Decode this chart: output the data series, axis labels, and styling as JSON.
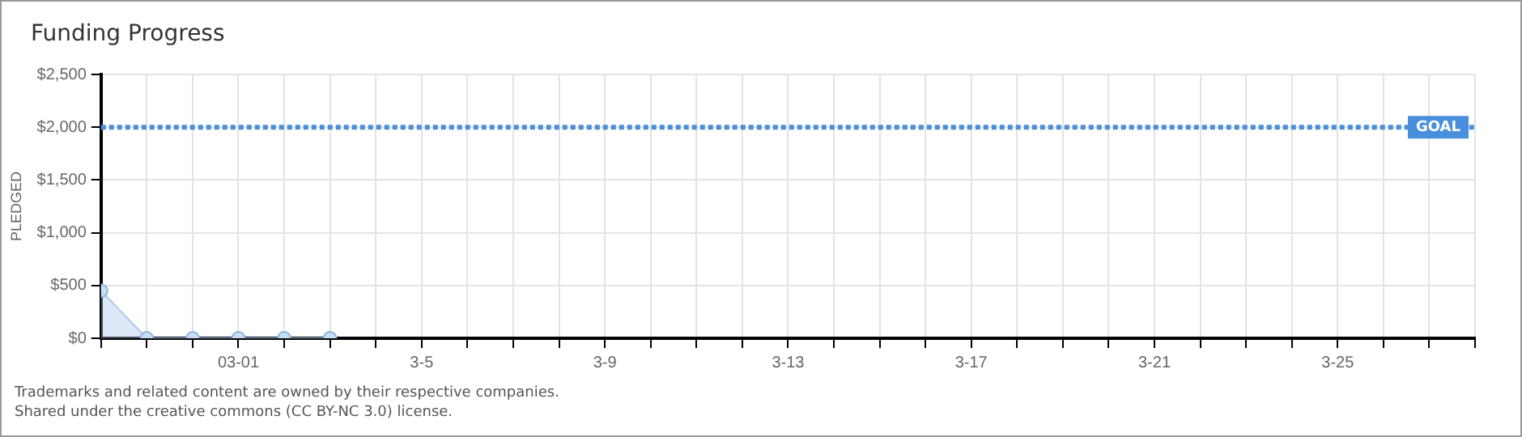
{
  "chart_data": {
    "type": "area",
    "title": "Funding Progress",
    "ylabel": "PLEDGED",
    "x": [
      "--02-26",
      "--02-27",
      "--02-28",
      "--03-01",
      "--03-02",
      "--03-03"
    ],
    "series": [
      {
        "color": "#a9c9ee",
        "values": [
          450,
          0,
          0,
          0,
          0,
          0
        ]
      }
    ],
    "xlim": [
      "--02-26",
      "--03-28"
    ],
    "xticks": [
      {
        "value": "--02-26",
        "label": null
      },
      {
        "value": "--02-27",
        "label": null
      },
      {
        "value": "--02-28",
        "label": null
      },
      {
        "value": "--03-01",
        "label": "03-01"
      },
      {
        "value": "--03-02",
        "label": null
      },
      {
        "value": "--03-03",
        "label": null
      },
      {
        "value": "--03-04",
        "label": null
      },
      {
        "value": "--03-05",
        "label": "3-5"
      },
      {
        "value": "--03-06",
        "label": null
      },
      {
        "value": "--03-07",
        "label": null
      },
      {
        "value": "--03-08",
        "label": null
      },
      {
        "value": "--03-09",
        "label": "3-9"
      },
      {
        "value": "--03-10",
        "label": null
      },
      {
        "value": "--03-11",
        "label": null
      },
      {
        "value": "--03-12",
        "label": null
      },
      {
        "value": "--03-13",
        "label": "3-13"
      },
      {
        "value": "--03-14",
        "label": null
      },
      {
        "value": "--03-15",
        "label": null
      },
      {
        "value": "--03-16",
        "label": null
      },
      {
        "value": "--03-17",
        "label": "3-17"
      },
      {
        "value": "--03-18",
        "label": null
      },
      {
        "value": "--03-19",
        "label": null
      },
      {
        "value": "--03-20",
        "label": null
      },
      {
        "value": "--03-21",
        "label": "3-21"
      },
      {
        "value": "--03-22",
        "label": null
      },
      {
        "value": "--03-23",
        "label": null
      },
      {
        "value": "--03-24",
        "label": null
      },
      {
        "value": "--03-25",
        "label": "3-25"
      },
      {
        "value": "--03-26",
        "label": null
      },
      {
        "value": "--03-27",
        "label": null
      },
      {
        "value": "--03-28",
        "label": null
      }
    ],
    "ylim": [
      0,
      2500
    ],
    "yticks": [
      {
        "value": 0,
        "label": "$0"
      },
      {
        "value": 500,
        "label": "$500"
      },
      {
        "value": 1000,
        "label": "$1,000"
      },
      {
        "value": 1500,
        "label": "$1,500"
      },
      {
        "value": 2000,
        "label": "$2,000"
      },
      {
        "value": 2500,
        "label": "$2,500"
      }
    ],
    "ref_lines": [
      {
        "axis": "y",
        "value": 2000,
        "label": "GOAL",
        "color": "#4a8fdc",
        "line_style": "dotted"
      }
    ],
    "grid": true,
    "marker": "circle",
    "legend": false,
    "annotations": [
      "Trademarks and related content are owned by their respective companies.",
      "Shared under the creative commons (CC BY-NC 3.0) license."
    ]
  }
}
